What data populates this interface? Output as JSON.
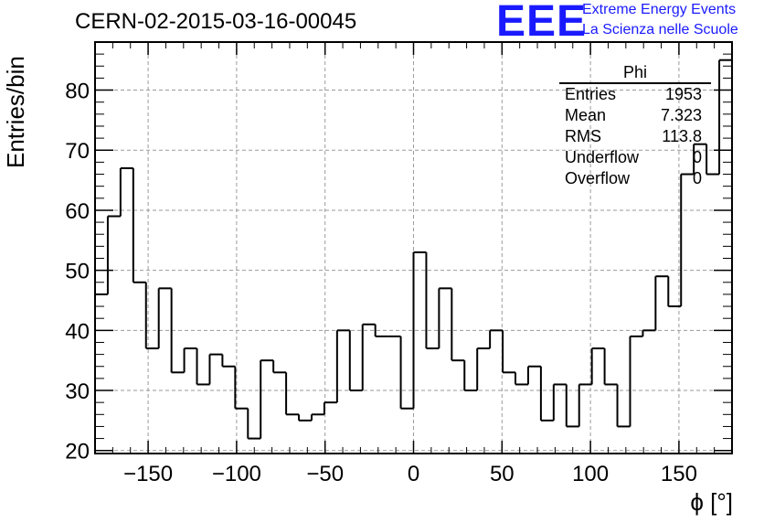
{
  "header": {
    "title": "CERN-02-2015-03-16-00045",
    "logo_text": "EEE",
    "logo_line1": "Extreme Energy Events",
    "logo_line2": "La Scienza nelle Scuole"
  },
  "stats": {
    "title": "Phi",
    "rows": [
      {
        "label": "Entries",
        "value": "1953"
      },
      {
        "label": "Mean",
        "value": "7.323"
      },
      {
        "label": "RMS",
        "value": "113.8"
      },
      {
        "label": "Underflow",
        "value": "0"
      },
      {
        "label": "Overflow",
        "value": "0"
      }
    ]
  },
  "chart_data": {
    "type": "bar",
    "style": "step-histogram",
    "title": "CERN-02-2015-03-16-00045",
    "xlabel": "ϕ [°]",
    "ylabel": "Entries/bin",
    "xlim": [
      -180,
      180
    ],
    "ylim": [
      19.5,
      88
    ],
    "bin_width": 7.2,
    "x_ticks": [
      -150,
      -100,
      -50,
      0,
      50,
      100,
      150
    ],
    "x_tick_labels": [
      "−150",
      "−100",
      "−50",
      "0",
      "50",
      "100",
      "150"
    ],
    "y_ticks": [
      20,
      30,
      40,
      50,
      60,
      70,
      80
    ],
    "y_tick_labels": [
      "20",
      "30",
      "40",
      "50",
      "60",
      "70",
      "80"
    ],
    "grid": true,
    "values": [
      46,
      59,
      67,
      48,
      37,
      47,
      33,
      37,
      31,
      36,
      34,
      27,
      22,
      35,
      33,
      26,
      25,
      26,
      28,
      40,
      30,
      41,
      39,
      39,
      27,
      53,
      37,
      47,
      35,
      30,
      37,
      40,
      33,
      31,
      34,
      25,
      31,
      24,
      31,
      37,
      31,
      24,
      39,
      40,
      49,
      44,
      66,
      71,
      66,
      85
    ],
    "line_color": "#000000",
    "grid_color": "#9a9a9a"
  }
}
